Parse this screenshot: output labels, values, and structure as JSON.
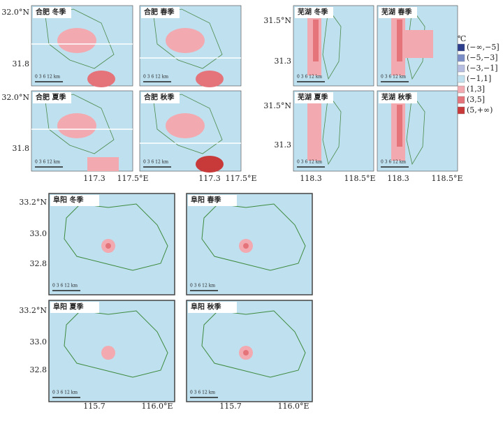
{
  "hefei": {
    "panels": [
      "合肥 冬季",
      "合肥 春季",
      "合肥 夏季",
      "合肥 秋季"
    ],
    "lat_labels": [
      [
        "32.0°N",
        "31.8"
      ],
      [
        "32.0°N",
        "31.8"
      ]
    ],
    "lon_labels": [
      [
        "117.3",
        "117.5°E"
      ],
      [
        "117.3",
        "117.5°E"
      ]
    ]
  },
  "wuhu": {
    "panels": [
      "芜湖 冬季",
      "芜湖 春季",
      "芜湖 夏季",
      "芜湖 秋季"
    ],
    "lat_labels": [
      [
        "31.5°N",
        "31.3"
      ],
      [
        "31.5°N",
        "31.3"
      ]
    ],
    "lon_labels": [
      [
        "118.3",
        "118.5°E"
      ],
      [
        "118.3",
        "118.5°E"
      ]
    ]
  },
  "fuyang": {
    "panels": [
      "阜阳 冬季",
      "阜阳 春季",
      "阜阳 夏季",
      "阜阳 秋季"
    ],
    "lat_labels": [
      [
        "33.2°N",
        "33.0",
        "32.8"
      ],
      [
        "33.2°N",
        "33.0",
        "32.8"
      ]
    ],
    "lon_labels": [
      [
        "115.7",
        "116.0°E"
      ],
      [
        "115.7",
        "116.0°E"
      ]
    ]
  },
  "scale_bar": "0 3 6 12 km",
  "legend": {
    "unit": "℃",
    "items": [
      {
        "label": "(−∞,−5]",
        "color": "#2c3e8c"
      },
      {
        "label": "(−5,−3]",
        "color": "#7b8ec8"
      },
      {
        "label": "(−3,−1]",
        "color": "#b5bde0"
      },
      {
        "label": "(−1,1]",
        "color": "#bfe0ef"
      },
      {
        "label": "(1,3]",
        "color": "#f2aab0"
      },
      {
        "label": "(3,5]",
        "color": "#e5737a"
      },
      {
        "label": "(5,+∞)",
        "color": "#c83a3a"
      }
    ]
  }
}
